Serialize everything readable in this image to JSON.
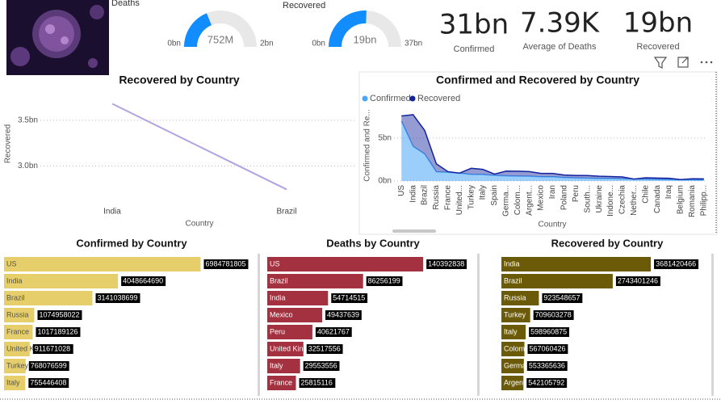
{
  "cards": [
    {
      "value": "31bn",
      "label": "Confirmed"
    },
    {
      "value": "7.39K",
      "label": "Average of Deaths"
    },
    {
      "value": "19bn",
      "label": "Recovered"
    }
  ],
  "chart_data": [
    {
      "type": "gauge",
      "title": "Deaths",
      "values": [
        752000000
      ],
      "value_labels": [
        "752M"
      ],
      "color": "#118dff",
      "ylim": [
        0,
        2000000000
      ],
      "yticks": [
        {
          "value": 0,
          "label": "0bn"
        },
        {
          "value": 2000000000,
          "label": "2bn"
        }
      ]
    },
    {
      "type": "gauge",
      "title": "Recovered",
      "values": [
        19000000000
      ],
      "value_labels": [
        "19bn"
      ],
      "color": "#118dff",
      "ylim": [
        0,
        37000000000
      ],
      "yticks": [
        {
          "value": 0,
          "label": "0bn"
        },
        {
          "value": 37000000000,
          "label": "37bn"
        }
      ]
    },
    {
      "type": "line",
      "title": "Recovered by Country",
      "x_label": "Country",
      "y_label": "Recovered",
      "categories": [
        "India",
        "Brazil"
      ],
      "values": [
        3681420466,
        2743401246
      ],
      "color": "#b3a3e0",
      "ylim": [
        2650000000,
        3800000000
      ],
      "yticks": [
        {
          "value": 3000000000,
          "label": "3.0bn"
        },
        {
          "value": 3500000000,
          "label": "3.5bn"
        }
      ],
      "grid": true
    },
    {
      "type": "area",
      "stacked": true,
      "title": "Confirmed and Recovered by Country",
      "x_label": "Country",
      "y_label": "Confirmed and Re...",
      "categories": [
        "US",
        "India",
        "Brazil",
        "Russia",
        "France",
        "United...",
        "Turkey",
        "Italy",
        "Spain",
        "Germa...",
        "Colom...",
        "Argent...",
        "Mexico",
        "Iran",
        "Poland",
        "Peru",
        "South...",
        "Ukraine",
        "Indone...",
        "Czechia",
        "Nether...",
        "Chile",
        "Canada",
        "Iraq",
        "Belgium",
        "Romania",
        "Philipp..."
      ],
      "series": [
        {
          "name": "Confirmed",
          "color": "#4aa6f7",
          "values": [
            6984781805,
            4048664690,
            3141038699,
            1074958022,
            1017189126,
            911671028,
            768076599,
            755446408,
            650000000,
            600000000,
            570000000,
            550000000,
            500000000,
            480000000,
            400000000,
            350000000,
            330000000,
            300000000,
            280000000,
            250000000,
            220000000,
            200000000,
            180000000,
            170000000,
            150000000,
            140000000,
            130000000
          ]
        },
        {
          "name": "Recovered",
          "color": "#12239e",
          "values": [
            600000000,
            3681420466,
            2743401246,
            923548657,
            70000000,
            10000000,
            709603278,
            598960875,
            150000000,
            553365636,
            567060426,
            542105792,
            380000000,
            400000000,
            300000000,
            300000000,
            300000000,
            250000000,
            240000000,
            220000000,
            10000000,
            180000000,
            160000000,
            150000000,
            20000000,
            120000000,
            120000000
          ]
        }
      ],
      "ylim": [
        0,
        8100000000
      ],
      "yticks": [
        {
          "value": 0,
          "label": "0bn"
        },
        {
          "value": 5000000000,
          "label": "5bn"
        }
      ],
      "grid": true,
      "legend": "top-left"
    },
    {
      "type": "hbar",
      "title": "Confirmed by Country",
      "categories": [
        "US",
        "India",
        "Brazil",
        "Russia",
        "France",
        "United Kingdom",
        "Turkey",
        "Italy"
      ],
      "values": [
        6984781805,
        4048664690,
        3141038699,
        1074958022,
        1017189126,
        911671028,
        768076599,
        755446408
      ],
      "color": "#e6cf6b",
      "label_color": "#555555",
      "xlim": [
        0,
        7000000000
      ]
    },
    {
      "type": "hbar",
      "title": "Deaths by Country",
      "categories": [
        "US",
        "Brazil",
        "India",
        "Mexico",
        "Peru",
        "United King",
        "Italy",
        "France"
      ],
      "values": [
        140392838,
        86256199,
        54714515,
        49437639,
        40621767,
        32517556,
        29553556,
        25815116
      ],
      "color": "#a3313f",
      "label_color": "#ffffff",
      "xlim": [
        0,
        141000000
      ]
    },
    {
      "type": "hbar",
      "title": "Recovered by Country",
      "categories": [
        "India",
        "Brazil",
        "Russia",
        "Turkey",
        "Italy",
        "Colom",
        "Germa",
        "Argen"
      ],
      "values": [
        3681420466,
        2743401246,
        923548657,
        709603278,
        598960875,
        567060426,
        553365636,
        542105792
      ],
      "color": "#6b5a08",
      "label_color": "#ffffff",
      "xlim": [
        0,
        3700000000
      ]
    }
  ]
}
